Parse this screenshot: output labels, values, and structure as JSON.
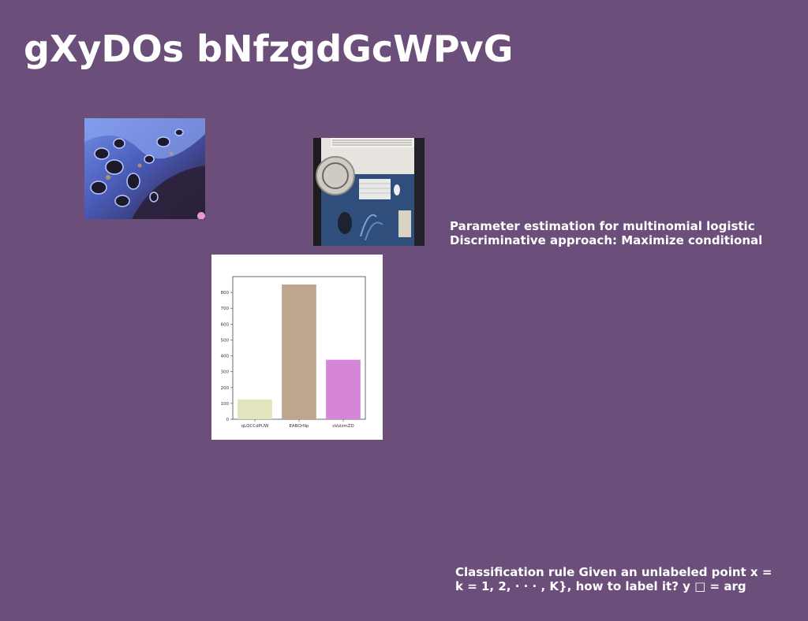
{
  "slide": {
    "title": "gXyDOs bNfzgdGcWPvG",
    "background_color": "#6b4e79"
  },
  "text_block_1": {
    "lines": [
      "Parameter estimation for multinomial logistic",
      "Discriminative approach: Maximize conditional"
    ]
  },
  "text_block_2": {
    "lines": [
      "Classification rule Given an unlabeled point x =",
      "k = 1, 2, · · · , K}, how to label it? y □ = arg"
    ]
  },
  "images": {
    "marble": {
      "icon": "abstract-marble-image"
    },
    "desk": {
      "icon": "desk-overhead-photo"
    }
  },
  "chart_data": {
    "type": "bar",
    "categories": [
      "qLQCCdPUW",
      "EABOrNp",
      "sVuizmZD"
    ],
    "values": [
      125,
      850,
      375
    ],
    "colors": [
      "#e1e4bd",
      "#bea58e",
      "#d586d8"
    ],
    "ylim": [
      0,
      900
    ],
    "yticks": [
      0,
      100,
      200,
      300,
      400,
      500,
      600,
      700,
      800
    ],
    "title": "",
    "xlabel": "",
    "ylabel": "",
    "grid": false
  }
}
